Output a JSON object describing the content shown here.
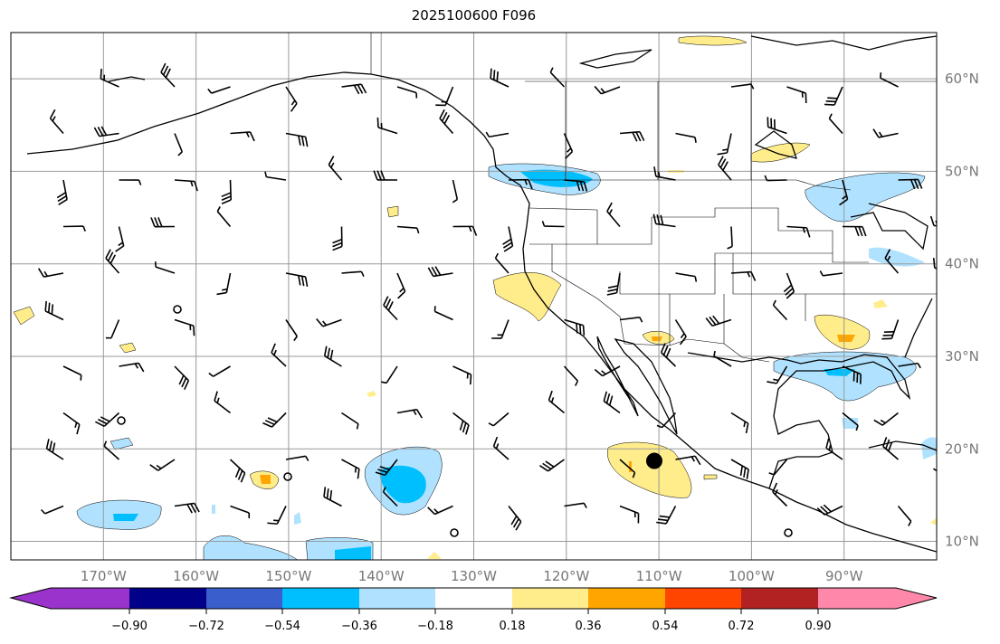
{
  "title": "2025100600 F096",
  "map": {
    "lon_range": [
      -180,
      -80
    ],
    "lat_range": [
      8,
      65
    ],
    "lon_ticks": [
      "170°W",
      "160°W",
      "150°W",
      "140°W",
      "130°W",
      "120°W",
      "110°W",
      "100°W",
      "90°W"
    ],
    "lon_tick_values": [
      -170,
      -160,
      -150,
      -140,
      -130,
      -120,
      -110,
      -100,
      -90
    ],
    "lat_ticks": [
      "60°N",
      "50°N",
      "40°N",
      "30°N",
      "20°N",
      "10°N"
    ],
    "lat_tick_values": [
      60,
      50,
      40,
      30,
      20,
      10
    ],
    "marker": {
      "lon": -110.5,
      "lat": 18.7
    }
  },
  "colorbar": {
    "labels": [
      "−0.90",
      "−0.72",
      "−0.54",
      "−0.36",
      "−0.18",
      "0.18",
      "0.36",
      "0.54",
      "0.72",
      "0.90"
    ],
    "colors": [
      "#9933cc",
      "#000088",
      "#3a5fcd",
      "#00bfff",
      "#b0e2ff",
      "#ffffff",
      "#ffec8b",
      "#ffa500",
      "#ff4500",
      "#b22222",
      "#ff88aa"
    ]
  }
}
